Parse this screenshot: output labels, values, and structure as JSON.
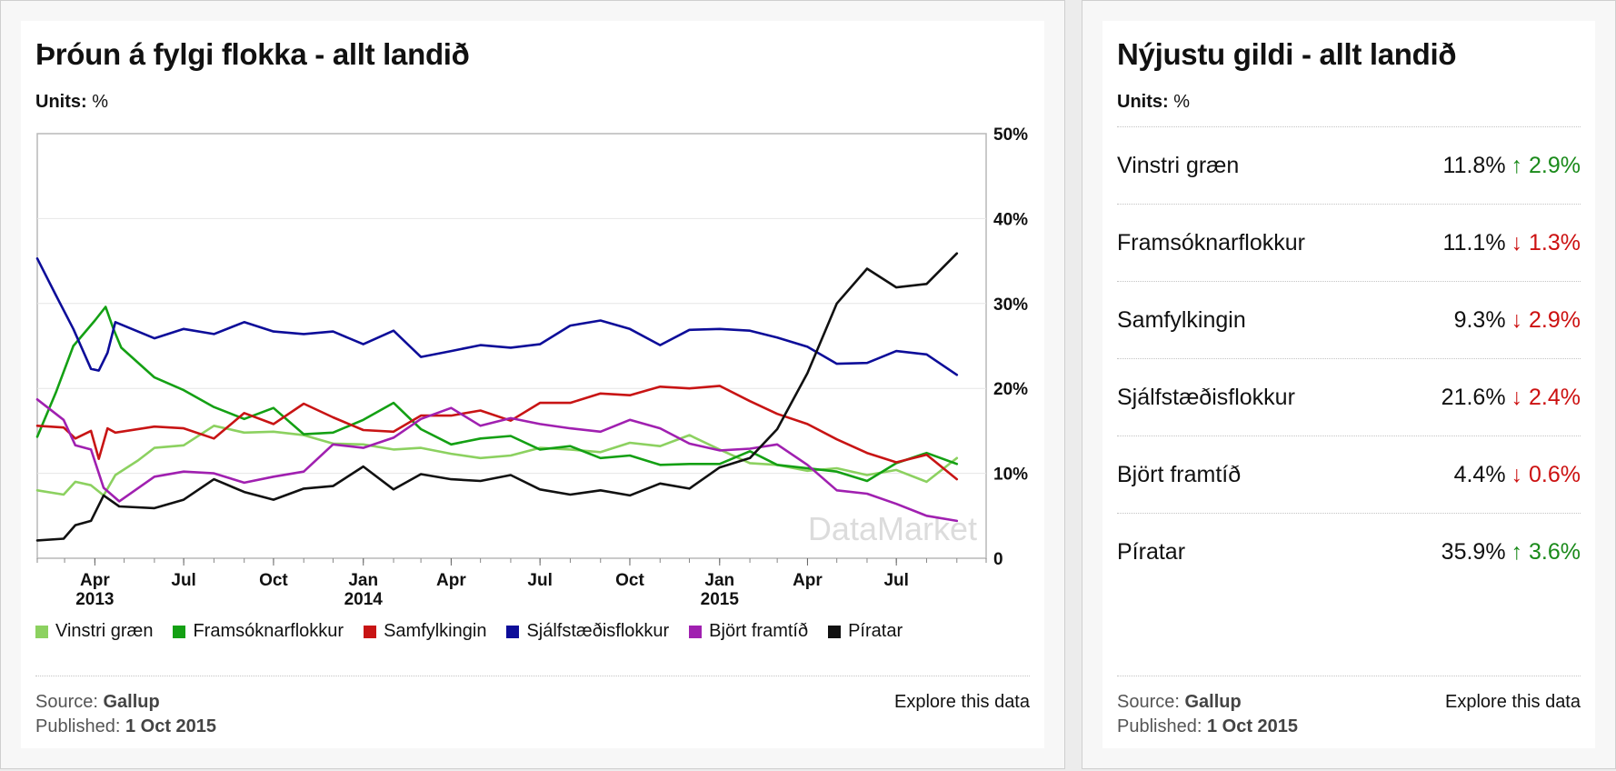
{
  "left_panel": {
    "title": "Þróun á fylgi flokka - allt landið",
    "units_label": "Units:",
    "units_value": "%",
    "watermark": "DataMarket",
    "footer": {
      "source_label": "Source:",
      "source_value": "Gallup",
      "published_label": "Published:",
      "published_value": "1 Oct 2015",
      "explore_label": "Explore this data"
    }
  },
  "right_panel": {
    "title": "Nýjustu gildi - allt landið",
    "units_label": "Units:",
    "units_value": "%",
    "rows": [
      {
        "name": "Vinstri græn",
        "value": "11.8%",
        "change": "2.9%",
        "direction": "up",
        "arrow": "↑"
      },
      {
        "name": "Framsóknarflokkur",
        "value": "11.1%",
        "change": "1.3%",
        "direction": "down",
        "arrow": "↓"
      },
      {
        "name": "Samfylkingin",
        "value": "9.3%",
        "change": "2.9%",
        "direction": "down",
        "arrow": "↓"
      },
      {
        "name": "Sjálfstæðisflokkur",
        "value": "21.6%",
        "change": "2.4%",
        "direction": "down",
        "arrow": "↓"
      },
      {
        "name": "Björt framtíð",
        "value": "4.4%",
        "change": "0.6%",
        "direction": "down",
        "arrow": "↓"
      },
      {
        "name": "Píratar",
        "value": "35.9%",
        "change": "3.6%",
        "direction": "up",
        "arrow": "↑"
      }
    ],
    "footer": {
      "source_label": "Source:",
      "source_value": "Gallup",
      "published_label": "Published:",
      "published_value": "1 Oct 2015",
      "explore_label": "Explore this data"
    }
  },
  "colors": {
    "up": "#1a8a1a",
    "down": "#cc1111"
  },
  "chart_data": {
    "type": "line",
    "title": "Þróun á fylgi flokka - allt landið",
    "units": "%",
    "ylim": [
      0,
      50
    ],
    "y_ticks": [
      {
        "value": 0,
        "label": "0"
      },
      {
        "value": 10,
        "label": "10%"
      },
      {
        "value": 20,
        "label": "20%"
      },
      {
        "value": 30,
        "label": "30%"
      },
      {
        "value": 40,
        "label": "40%"
      },
      {
        "value": 50,
        "label": "50%"
      }
    ],
    "x_range": [
      "2013-02-01",
      "2015-10-01"
    ],
    "x_ticks": [
      {
        "date": "2013-04-01",
        "label": "Apr",
        "year": "2013"
      },
      {
        "date": "2013-07-01",
        "label": "Jul",
        "year": ""
      },
      {
        "date": "2013-10-01",
        "label": "Oct",
        "year": ""
      },
      {
        "date": "2014-01-01",
        "label": "Jan",
        "year": "2014"
      },
      {
        "date": "2014-04-01",
        "label": "Apr",
        "year": ""
      },
      {
        "date": "2014-07-01",
        "label": "Jul",
        "year": ""
      },
      {
        "date": "2014-10-01",
        "label": "Oct",
        "year": ""
      },
      {
        "date": "2015-01-01",
        "label": "Jan",
        "year": "2015"
      },
      {
        "date": "2015-04-01",
        "label": "Apr",
        "year": ""
      },
      {
        "date": "2015-07-01",
        "label": "Jul",
        "year": ""
      }
    ],
    "grid": true,
    "legend_position": "bottom",
    "series": [
      {
        "name": "Vinstri græn",
        "color": "#8cd160",
        "points": [
          [
            "2013-02-01",
            8.0
          ],
          [
            "2013-02-28",
            7.5
          ],
          [
            "2013-03-12",
            9.0
          ],
          [
            "2013-03-28",
            8.6
          ],
          [
            "2013-04-10",
            7.4
          ],
          [
            "2013-04-22",
            9.8
          ],
          [
            "2013-05-15",
            11.5
          ],
          [
            "2013-06-01",
            13.0
          ],
          [
            "2013-07-01",
            13.3
          ],
          [
            "2013-08-01",
            15.6
          ],
          [
            "2013-09-01",
            14.8
          ],
          [
            "2013-10-01",
            14.9
          ],
          [
            "2013-11-01",
            14.5
          ],
          [
            "2013-12-01",
            13.5
          ],
          [
            "2014-01-01",
            13.4
          ],
          [
            "2014-02-01",
            12.8
          ],
          [
            "2014-03-01",
            13.0
          ],
          [
            "2014-04-01",
            12.3
          ],
          [
            "2014-05-01",
            11.8
          ],
          [
            "2014-06-01",
            12.1
          ],
          [
            "2014-07-01",
            13.0
          ],
          [
            "2014-08-01",
            12.8
          ],
          [
            "2014-09-01",
            12.5
          ],
          [
            "2014-10-01",
            13.6
          ],
          [
            "2014-11-01",
            13.2
          ],
          [
            "2014-12-01",
            14.5
          ],
          [
            "2015-01-01",
            12.8
          ],
          [
            "2015-02-01",
            11.2
          ],
          [
            "2015-03-01",
            11.0
          ],
          [
            "2015-04-01",
            10.3
          ],
          [
            "2015-05-01",
            10.6
          ],
          [
            "2015-06-01",
            9.8
          ],
          [
            "2015-07-01",
            10.4
          ],
          [
            "2015-08-01",
            9.0
          ],
          [
            "2015-09-01",
            11.8
          ]
        ]
      },
      {
        "name": "Framsóknarflokkur",
        "color": "#14a014",
        "points": [
          [
            "2013-02-01",
            14.3
          ],
          [
            "2013-02-20",
            19.5
          ],
          [
            "2013-03-10",
            25.0
          ],
          [
            "2013-04-01",
            28.0
          ],
          [
            "2013-04-12",
            29.6
          ],
          [
            "2013-04-20",
            27.0
          ],
          [
            "2013-04-28",
            24.8
          ],
          [
            "2013-06-01",
            21.3
          ],
          [
            "2013-07-01",
            19.8
          ],
          [
            "2013-08-01",
            17.8
          ],
          [
            "2013-09-01",
            16.4
          ],
          [
            "2013-10-01",
            17.7
          ],
          [
            "2013-11-01",
            14.6
          ],
          [
            "2013-12-01",
            14.8
          ],
          [
            "2014-01-01",
            16.3
          ],
          [
            "2014-02-01",
            18.3
          ],
          [
            "2014-03-01",
            15.2
          ],
          [
            "2014-04-01",
            13.4
          ],
          [
            "2014-05-01",
            14.1
          ],
          [
            "2014-06-01",
            14.4
          ],
          [
            "2014-07-01",
            12.8
          ],
          [
            "2014-08-01",
            13.2
          ],
          [
            "2014-09-01",
            11.8
          ],
          [
            "2014-10-01",
            12.1
          ],
          [
            "2014-11-01",
            11.0
          ],
          [
            "2014-12-01",
            11.1
          ],
          [
            "2015-01-01",
            11.1
          ],
          [
            "2015-02-01",
            12.6
          ],
          [
            "2015-03-01",
            11.0
          ],
          [
            "2015-04-01",
            10.6
          ],
          [
            "2015-05-01",
            10.2
          ],
          [
            "2015-06-01",
            9.1
          ],
          [
            "2015-07-01",
            11.2
          ],
          [
            "2015-08-01",
            12.4
          ],
          [
            "2015-09-01",
            11.1
          ]
        ]
      },
      {
        "name": "Samfylkingin",
        "color": "#c81414",
        "points": [
          [
            "2013-02-01",
            15.6
          ],
          [
            "2013-02-28",
            15.4
          ],
          [
            "2013-03-12",
            14.1
          ],
          [
            "2013-03-28",
            15.0
          ],
          [
            "2013-04-05",
            11.7
          ],
          [
            "2013-04-14",
            15.3
          ],
          [
            "2013-04-22",
            14.8
          ],
          [
            "2013-06-01",
            15.5
          ],
          [
            "2013-07-01",
            15.3
          ],
          [
            "2013-08-01",
            14.1
          ],
          [
            "2013-09-01",
            17.1
          ],
          [
            "2013-10-01",
            15.8
          ],
          [
            "2013-11-01",
            18.2
          ],
          [
            "2013-12-01",
            16.6
          ],
          [
            "2014-01-01",
            15.1
          ],
          [
            "2014-02-01",
            14.9
          ],
          [
            "2014-03-01",
            16.8
          ],
          [
            "2014-04-01",
            16.8
          ],
          [
            "2014-05-01",
            17.4
          ],
          [
            "2014-06-01",
            16.2
          ],
          [
            "2014-07-01",
            18.3
          ],
          [
            "2014-08-01",
            18.3
          ],
          [
            "2014-09-01",
            19.4
          ],
          [
            "2014-10-01",
            19.2
          ],
          [
            "2014-11-01",
            20.2
          ],
          [
            "2014-12-01",
            20.0
          ],
          [
            "2015-01-01",
            20.3
          ],
          [
            "2015-02-01",
            18.5
          ],
          [
            "2015-03-01",
            17.0
          ],
          [
            "2015-04-01",
            15.8
          ],
          [
            "2015-05-01",
            14.0
          ],
          [
            "2015-06-01",
            12.4
          ],
          [
            "2015-07-01",
            11.3
          ],
          [
            "2015-08-01",
            12.2
          ],
          [
            "2015-09-01",
            9.3
          ]
        ]
      },
      {
        "name": "Sjálfstæðisflokkur",
        "color": "#0d0d99",
        "points": [
          [
            "2013-02-01",
            35.3
          ],
          [
            "2013-02-20",
            31.0
          ],
          [
            "2013-03-10",
            27.0
          ],
          [
            "2013-03-28",
            22.3
          ],
          [
            "2013-04-05",
            22.1
          ],
          [
            "2013-04-14",
            24.2
          ],
          [
            "2013-04-22",
            27.8
          ],
          [
            "2013-06-01",
            25.9
          ],
          [
            "2013-07-01",
            27.0
          ],
          [
            "2013-08-01",
            26.4
          ],
          [
            "2013-09-01",
            27.8
          ],
          [
            "2013-10-01",
            26.7
          ],
          [
            "2013-11-01",
            26.4
          ],
          [
            "2013-12-01",
            26.7
          ],
          [
            "2014-01-01",
            25.2
          ],
          [
            "2014-02-01",
            26.8
          ],
          [
            "2014-03-01",
            23.7
          ],
          [
            "2014-04-01",
            24.4
          ],
          [
            "2014-05-01",
            25.1
          ],
          [
            "2014-06-01",
            24.8
          ],
          [
            "2014-07-01",
            25.2
          ],
          [
            "2014-08-01",
            27.4
          ],
          [
            "2014-09-01",
            28.0
          ],
          [
            "2014-10-01",
            27.0
          ],
          [
            "2014-11-01",
            25.1
          ],
          [
            "2014-12-01",
            26.9
          ],
          [
            "2015-01-01",
            27.0
          ],
          [
            "2015-02-01",
            26.8
          ],
          [
            "2015-03-01",
            26.0
          ],
          [
            "2015-04-01",
            24.9
          ],
          [
            "2015-05-01",
            22.9
          ],
          [
            "2015-06-01",
            23.0
          ],
          [
            "2015-07-01",
            24.4
          ],
          [
            "2015-08-01",
            24.0
          ],
          [
            "2015-09-01",
            21.6
          ]
        ]
      },
      {
        "name": "Björt framtíð",
        "color": "#a020b0",
        "points": [
          [
            "2013-02-01",
            18.7
          ],
          [
            "2013-02-28",
            16.3
          ],
          [
            "2013-03-12",
            13.3
          ],
          [
            "2013-03-28",
            12.8
          ],
          [
            "2013-04-10",
            8.3
          ],
          [
            "2013-04-26",
            6.7
          ],
          [
            "2013-06-01",
            9.6
          ],
          [
            "2013-07-01",
            10.2
          ],
          [
            "2013-08-01",
            10.0
          ],
          [
            "2013-09-01",
            8.9
          ],
          [
            "2013-10-01",
            9.6
          ],
          [
            "2013-11-01",
            10.2
          ],
          [
            "2013-12-01",
            13.4
          ],
          [
            "2014-01-01",
            13.0
          ],
          [
            "2014-02-01",
            14.2
          ],
          [
            "2014-03-01",
            16.4
          ],
          [
            "2014-04-01",
            17.7
          ],
          [
            "2014-05-01",
            15.6
          ],
          [
            "2014-06-01",
            16.5
          ],
          [
            "2014-07-01",
            15.8
          ],
          [
            "2014-08-01",
            15.3
          ],
          [
            "2014-09-01",
            14.9
          ],
          [
            "2014-10-01",
            16.3
          ],
          [
            "2014-11-01",
            15.3
          ],
          [
            "2014-12-01",
            13.5
          ],
          [
            "2015-01-01",
            12.7
          ],
          [
            "2015-02-01",
            12.9
          ],
          [
            "2015-03-01",
            13.4
          ],
          [
            "2015-04-01",
            11.0
          ],
          [
            "2015-05-01",
            8.0
          ],
          [
            "2015-06-01",
            7.6
          ],
          [
            "2015-07-01",
            6.4
          ],
          [
            "2015-08-01",
            5.0
          ],
          [
            "2015-09-01",
            4.4
          ]
        ]
      },
      {
        "name": "Píratar",
        "color": "#111111",
        "points": [
          [
            "2013-02-01",
            2.1
          ],
          [
            "2013-02-28",
            2.3
          ],
          [
            "2013-03-12",
            3.9
          ],
          [
            "2013-03-28",
            4.4
          ],
          [
            "2013-04-10",
            7.4
          ],
          [
            "2013-04-26",
            6.1
          ],
          [
            "2013-06-01",
            5.9
          ],
          [
            "2013-07-01",
            6.9
          ],
          [
            "2013-08-01",
            9.3
          ],
          [
            "2013-09-01",
            7.8
          ],
          [
            "2013-10-01",
            6.9
          ],
          [
            "2013-11-01",
            8.2
          ],
          [
            "2013-12-01",
            8.5
          ],
          [
            "2014-01-01",
            10.8
          ],
          [
            "2014-02-01",
            8.1
          ],
          [
            "2014-03-01",
            9.9
          ],
          [
            "2014-04-01",
            9.3
          ],
          [
            "2014-05-01",
            9.1
          ],
          [
            "2014-06-01",
            9.8
          ],
          [
            "2014-07-01",
            8.1
          ],
          [
            "2014-08-01",
            7.5
          ],
          [
            "2014-09-01",
            8.0
          ],
          [
            "2014-10-01",
            7.4
          ],
          [
            "2014-11-01",
            8.8
          ],
          [
            "2014-12-01",
            8.2
          ],
          [
            "2015-01-01",
            10.7
          ],
          [
            "2015-02-01",
            11.8
          ],
          [
            "2015-03-01",
            15.2
          ],
          [
            "2015-04-01",
            21.8
          ],
          [
            "2015-05-01",
            30.0
          ],
          [
            "2015-06-01",
            34.1
          ],
          [
            "2015-07-01",
            31.9
          ],
          [
            "2015-08-01",
            32.3
          ],
          [
            "2015-09-01",
            35.9
          ]
        ]
      }
    ]
  }
}
